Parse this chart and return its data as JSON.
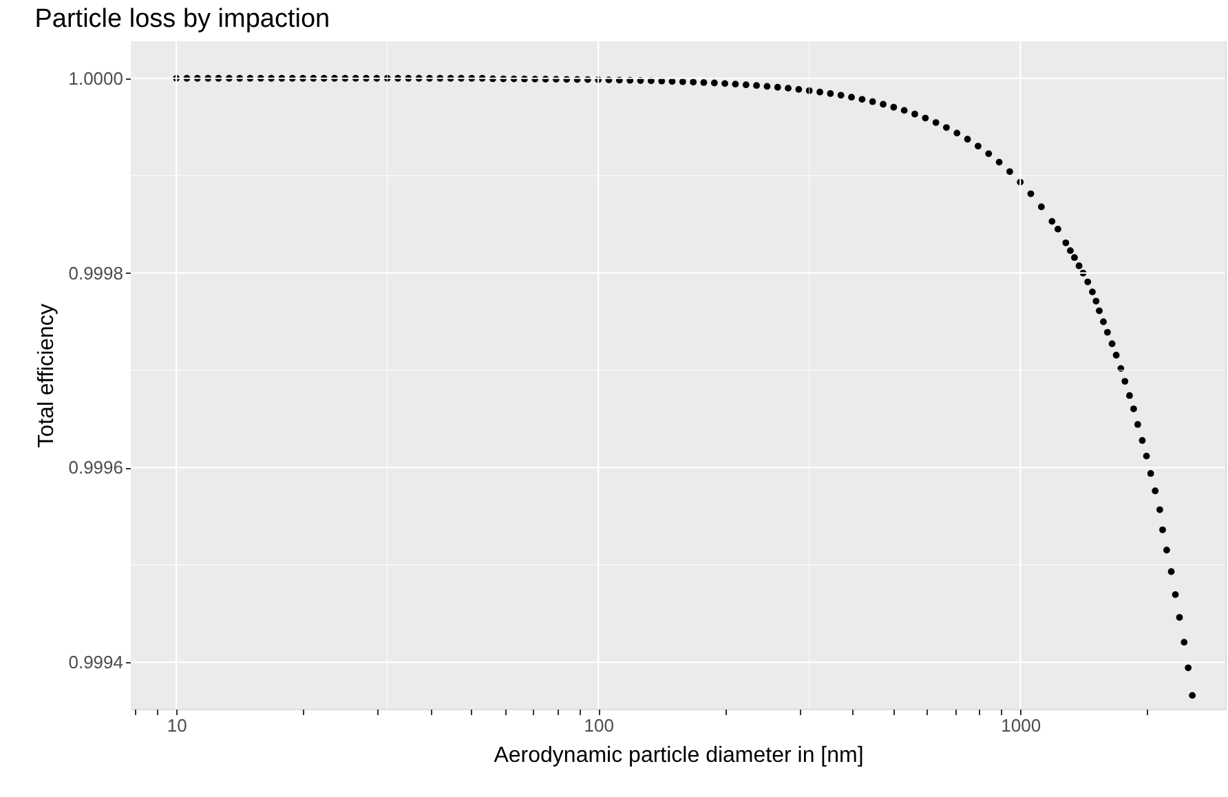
{
  "chart_data": {
    "type": "scatter",
    "title": "Particle loss by impaction",
    "xlabel": "Aerodynamic particle diameter in [nm]",
    "ylabel": "Total efficiency",
    "log": "x",
    "grid": true,
    "marker": "circle",
    "xlim": [
      7.8,
      3060
    ],
    "ylim": [
      0.999352,
      1.000038
    ],
    "xticks": [
      {
        "value": 8,
        "label": null
      },
      {
        "value": 9,
        "label": null
      },
      10,
      {
        "value": 20,
        "label": null
      },
      {
        "value": 30,
        "label": null
      },
      {
        "value": 40,
        "label": null
      },
      {
        "value": 50,
        "label": null
      },
      {
        "value": 60,
        "label": null
      },
      {
        "value": 70,
        "label": null
      },
      {
        "value": 80,
        "label": null
      },
      {
        "value": 90,
        "label": null
      },
      100,
      {
        "value": 200,
        "label": null
      },
      {
        "value": 300,
        "label": null
      },
      {
        "value": 400,
        "label": null
      },
      {
        "value": 500,
        "label": null
      },
      {
        "value": 600,
        "label": null
      },
      {
        "value": 700,
        "label": null
      },
      {
        "value": 800,
        "label": null
      },
      {
        "value": 900,
        "label": null
      },
      1000,
      {
        "value": 2000,
        "label": null
      }
    ],
    "yticks": [
      0.9994,
      0.9996,
      0.9998,
      {
        "value": 1,
        "label": "1.0000"
      }
    ],
    "series": [
      {
        "color": "#000000",
        "x": [
          10,
          10.59,
          11.22,
          11.89,
          12.59,
          13.34,
          14.13,
          14.96,
          15.85,
          16.79,
          17.78,
          18.84,
          19.95,
          21.13,
          22.39,
          23.71,
          25.12,
          26.61,
          28.18,
          29.85,
          31.62,
          33.5,
          35.48,
          37.58,
          39.81,
          42.17,
          44.67,
          47.32,
          50.12,
          53.09,
          56.23,
          59.57,
          63.1,
          66.83,
          70.79,
          74.99,
          79.43,
          84.14,
          89.13,
          94.41,
          100,
          105.9,
          112.2,
          118.9,
          125.9,
          133.4,
          141.3,
          149.6,
          158.5,
          167.9,
          177.8,
          188.4,
          199.5,
          211.3,
          223.9,
          237.1,
          251.2,
          266.1,
          281.8,
          298.5,
          316.2,
          335,
          354.8,
          375.8,
          398.1,
          421.7,
          446.7,
          473.2,
          501.2,
          530.9,
          562.3,
          595.7,
          631,
          668.3,
          707.9,
          749.9,
          794.3,
          841.4,
          891.3,
          944.1,
          1000,
          1059,
          1122,
          1189,
          1228,
          1282,
          1314,
          1344,
          1378,
          1409,
          1445,
          1482,
          1512,
          1539,
          1574,
          1609,
          1650,
          1688,
          1731,
          1770,
          1815,
          1856,
          1898,
          1946,
          1991,
          2037,
          2088,
          2141,
          2174,
          2223,
          2279,
          2331,
          2384,
          2445,
          2500,
          2557
        ],
        "values": [
          1,
          1,
          1,
          1,
          1,
          1,
          1,
          1,
          1,
          1,
          1,
          1,
          1,
          1,
          1,
          1,
          1,
          1,
          1,
          1,
          1,
          1,
          1,
          1,
          1,
          1,
          1,
          1,
          1,
          1,
          0.9999995,
          0.9999994,
          0.9999994,
          0.9999993,
          0.9999992,
          0.9999991,
          0.999999,
          0.9999989,
          0.9999988,
          0.9999987,
          0.9999985,
          0.9999983,
          0.9999981,
          0.9999979,
          0.9999977,
          0.9999974,
          0.9999972,
          0.9999968,
          0.9999965,
          0.9999961,
          0.9999956,
          0.9999952,
          0.9999946,
          0.999994,
          0.9999933,
          0.9999926,
          0.9999917,
          0.9999908,
          0.9999898,
          0.9999886,
          0.9999873,
          0.9999859,
          0.9999843,
          0.9999826,
          0.9999806,
          0.9999784,
          0.999976,
          0.9999733,
          0.9999703,
          0.999967,
          0.9999632,
          0.9999591,
          0.9999545,
          0.9999494,
          0.9999437,
          0.9999374,
          0.9999303,
          0.9999225,
          0.9999138,
          0.9999041,
          0.9998933,
          0.9998813,
          0.9998679,
          0.999853,
          0.999845,
          0.9998309,
          0.9998229,
          0.9998158,
          0.9998073,
          0.9997998,
          0.9997908,
          0.9997805,
          0.999771,
          0.9997611,
          0.9997498,
          0.999739,
          0.9997272,
          0.9997155,
          0.9997018,
          0.9996886,
          0.999674,
          0.9996603,
          0.9996443,
          0.9996278,
          0.9996118,
          0.9995939,
          0.999576,
          0.9995567,
          0.999536,
          0.9995152,
          0.9994931,
          0.9994695,
          0.999446,
          0.9994205,
          0.9993942,
          0.9993659
        ]
      }
    ]
  }
}
